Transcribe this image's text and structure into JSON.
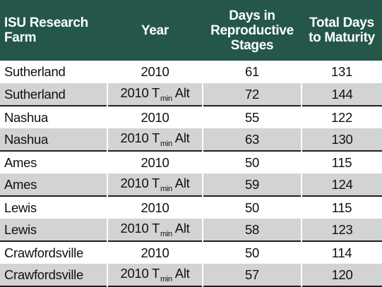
{
  "header": {
    "farm": "ISU Research Farm",
    "year": "Year",
    "repro": "Days in Reproductive Stages",
    "total": "Total Days to Maturity"
  },
  "rows": [
    {
      "farm": "Sutherland",
      "year": "2010",
      "year_sub": "",
      "year_suffix": "",
      "repro": "61",
      "total": "131",
      "alt": false
    },
    {
      "farm": "Sutherland",
      "year": "2010 T",
      "year_sub": "min",
      "year_suffix": "Alt",
      "repro": "72",
      "total": "144",
      "alt": true
    },
    {
      "farm": "Nashua",
      "year": "2010",
      "year_sub": "",
      "year_suffix": "",
      "repro": "55",
      "total": "122",
      "alt": false
    },
    {
      "farm": "Nashua",
      "year": "2010 T",
      "year_sub": "min",
      "year_suffix": "Alt",
      "repro": "63",
      "total": "130",
      "alt": true
    },
    {
      "farm": "Ames",
      "year": "2010",
      "year_sub": "",
      "year_suffix": "",
      "repro": "50",
      "total": "115",
      "alt": false
    },
    {
      "farm": "Ames",
      "year": "2010 T",
      "year_sub": "min",
      "year_suffix": "Alt",
      "repro": "59",
      "total": "124",
      "alt": true
    },
    {
      "farm": "Lewis",
      "year": "2010",
      "year_sub": "",
      "year_suffix": "",
      "repro": "50",
      "total": "115",
      "alt": false
    },
    {
      "farm": "Lewis",
      "year": "2010 T",
      "year_sub": "min",
      "year_suffix": "Alt",
      "repro": "58",
      "total": "123",
      "alt": true
    },
    {
      "farm": "Crawfordsville",
      "year": "2010",
      "year_sub": "",
      "year_suffix": "",
      "repro": "50",
      "total": "114",
      "alt": false
    },
    {
      "farm": "Crawfordsville",
      "year": "2010 T",
      "year_sub": "min",
      "year_suffix": "Alt",
      "repro": "57",
      "total": "120",
      "alt": true
    }
  ],
  "colors": {
    "header_bg": "#24574a",
    "alt_row_bg": "#d2d3d5"
  }
}
